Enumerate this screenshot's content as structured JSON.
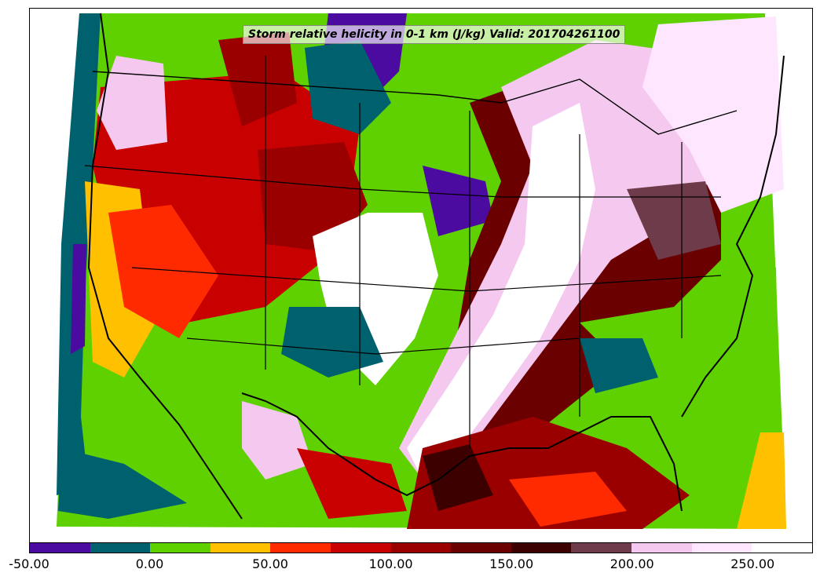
{
  "title": "Storm relative helicity in 0-1 km (J/kg) Valid: 201704261100",
  "legend": {
    "colors": [
      "#4b0aa0",
      "#00616e",
      "#5fd100",
      "#ffc000",
      "#ff2a00",
      "#c80000",
      "#9a0000",
      "#6a0000",
      "#3d0000",
      "#6e3b4a",
      "#f5c8f0",
      "#ffe6ff",
      "#ffffff"
    ],
    "tick_labels": [
      "-50.00",
      "0.00",
      "50.00",
      "100.00",
      "150.00",
      "200.00",
      "250.00"
    ]
  },
  "colors": {
    "background": "#ffffff",
    "low_purple": "#4b0aa0",
    "teal": "#00616e",
    "green": "#5fd100",
    "yellow": "#ffc000",
    "red": "#ff2a00",
    "dark_red": "#9a0000",
    "very_dark_red": "#3d0000",
    "mauve": "#6e3b4a",
    "pink": "#f5c8f0",
    "white": "#ffffff"
  }
}
